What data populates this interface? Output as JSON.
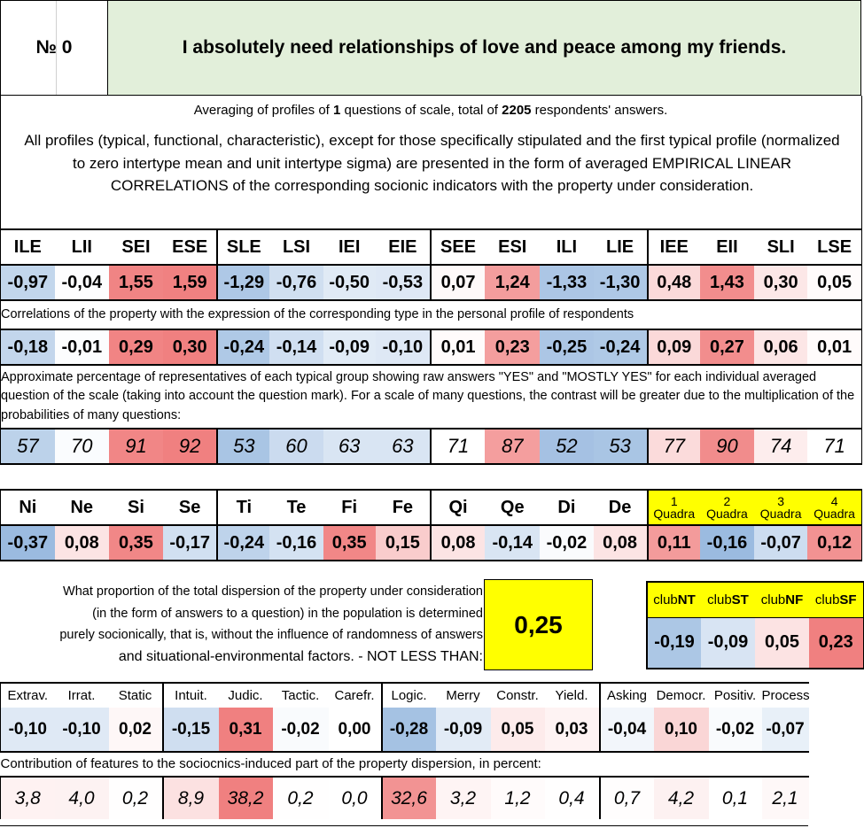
{
  "header": {
    "number_label": "№ 0",
    "title": "I absolutely need relationships of love and peace among my friends."
  },
  "averaging": {
    "pre": "Averaging of profiles of ",
    "n_questions": "1",
    "mid": " questions of scale, total of ",
    "n_answers": "2205",
    "post": " respondents' answers."
  },
  "description": "All profiles (typical, functional, characteristic), except for those specifically stipulated and the first typical profile (normalized to zero intertype mean and unit intertype sigma) are presented in the form of averaged EMPIRICAL LINEAR CORRELATIONS of the corresponding socionic indicators with the property under consideration.",
  "types": {
    "headers": [
      "ILE",
      "LII",
      "SEI",
      "ESE",
      "SLE",
      "LSI",
      "IEI",
      "EIE",
      "SEE",
      "ESI",
      "ILI",
      "LIE",
      "IEE",
      "EII",
      "SLI",
      "LSE"
    ],
    "profile": [
      "-0,97",
      "-0,04",
      "1,55",
      "1,59",
      "-1,29",
      "-0,76",
      "-0,50",
      "-0,53",
      "0,07",
      "1,24",
      "-1,33",
      "-1,30",
      "0,48",
      "1,43",
      "0,30",
      "0,05"
    ],
    "correlation_note": "Correlations of the property with the expression of the corresponding type in the personal profile of respondents",
    "correlations": [
      "-0,18",
      "-0,01",
      "0,29",
      "0,30",
      "-0,24",
      "-0,14",
      "-0,09",
      "-0,10",
      "0,01",
      "0,23",
      "-0,25",
      "-0,24",
      "0,09",
      "0,27",
      "0,06",
      "0,01"
    ],
    "percent_note": "Approximate percentage of representatives of each typical group showing raw answers \"YES\" and \"MOSTLY YES\" for each individual averaged question of the scale (taking into account the question mark). For a scale of many questions, the contrast will be greater due to the multiplication of the probabilities of many questions:",
    "percentages": [
      "57",
      "70",
      "91",
      "92",
      "53",
      "60",
      "63",
      "63",
      "71",
      "87",
      "52",
      "53",
      "77",
      "90",
      "74",
      "71"
    ]
  },
  "functions": {
    "headers": [
      "Ni",
      "Ne",
      "Si",
      "Se",
      "Ti",
      "Te",
      "Fi",
      "Fe",
      "Qi",
      "Qe",
      "Di",
      "De"
    ],
    "values": [
      "-0,37",
      "0,08",
      "0,35",
      "-0,17",
      "-0,24",
      "-0,16",
      "0,35",
      "0,15",
      "0,08",
      "-0,14",
      "-0,02",
      "0,08"
    ]
  },
  "quadras": {
    "headers": [
      {
        "num": "1",
        "word": "Quadra"
      },
      {
        "num": "2",
        "word": "Quadra"
      },
      {
        "num": "3",
        "word": "Quadra"
      },
      {
        "num": "4",
        "word": "Quadra"
      }
    ],
    "values": [
      "0,11",
      "-0,16",
      "-0,07",
      "0,12"
    ]
  },
  "dispersion": {
    "text_lines": [
      "What proportion of the total dispersion of the property under consideration",
      "(in the form of answers to a question) in the population is determined",
      "purely socionically, that is, without the influence of randomness of answers",
      "and situational-environmental factors. - NOT LESS THAN:"
    ],
    "value": "0,25"
  },
  "clubs": {
    "headers": [
      {
        "pre": "club",
        "bold": "NT"
      },
      {
        "pre": "club",
        "bold": "ST"
      },
      {
        "pre": "club",
        "bold": "NF"
      },
      {
        "pre": "club",
        "bold": "SF"
      }
    ],
    "values": [
      "-0,19",
      "-0,09",
      "0,05",
      "0,23"
    ]
  },
  "features": {
    "headers": [
      "Extrav.",
      "Irrat.",
      "Static",
      "Intuit.",
      "Judic.",
      "Tactic.",
      "Carefr.",
      "Logic.",
      "Merry",
      "Constr.",
      "Yield.",
      "Asking",
      "Democr.",
      "Positiv.",
      "Process"
    ],
    "values": [
      "-0,10",
      "-0,10",
      "0,02",
      "-0,15",
      "0,31",
      "-0,02",
      "0,00",
      "-0,28",
      "-0,09",
      "0,05",
      "0,03",
      "-0,04",
      "0,10",
      "-0,02",
      "-0,07"
    ],
    "contribution_note": "Contribution of features to the sociocnics-induced part of the property dispersion, in percent:",
    "contributions": [
      "3,8",
      "4,0",
      "0,2",
      "8,9",
      "38,2",
      "0,2",
      "0,0",
      "32,6",
      "3,2",
      "1,2",
      "0,4",
      "0,7",
      "4,2",
      "0,1",
      "2,1"
    ]
  },
  "colors": {
    "neg_strong": "#9bbbe0",
    "pos_strong": "#f08080",
    "header_green": "#e2efda",
    "highlight_yellow": "#ffff00"
  }
}
